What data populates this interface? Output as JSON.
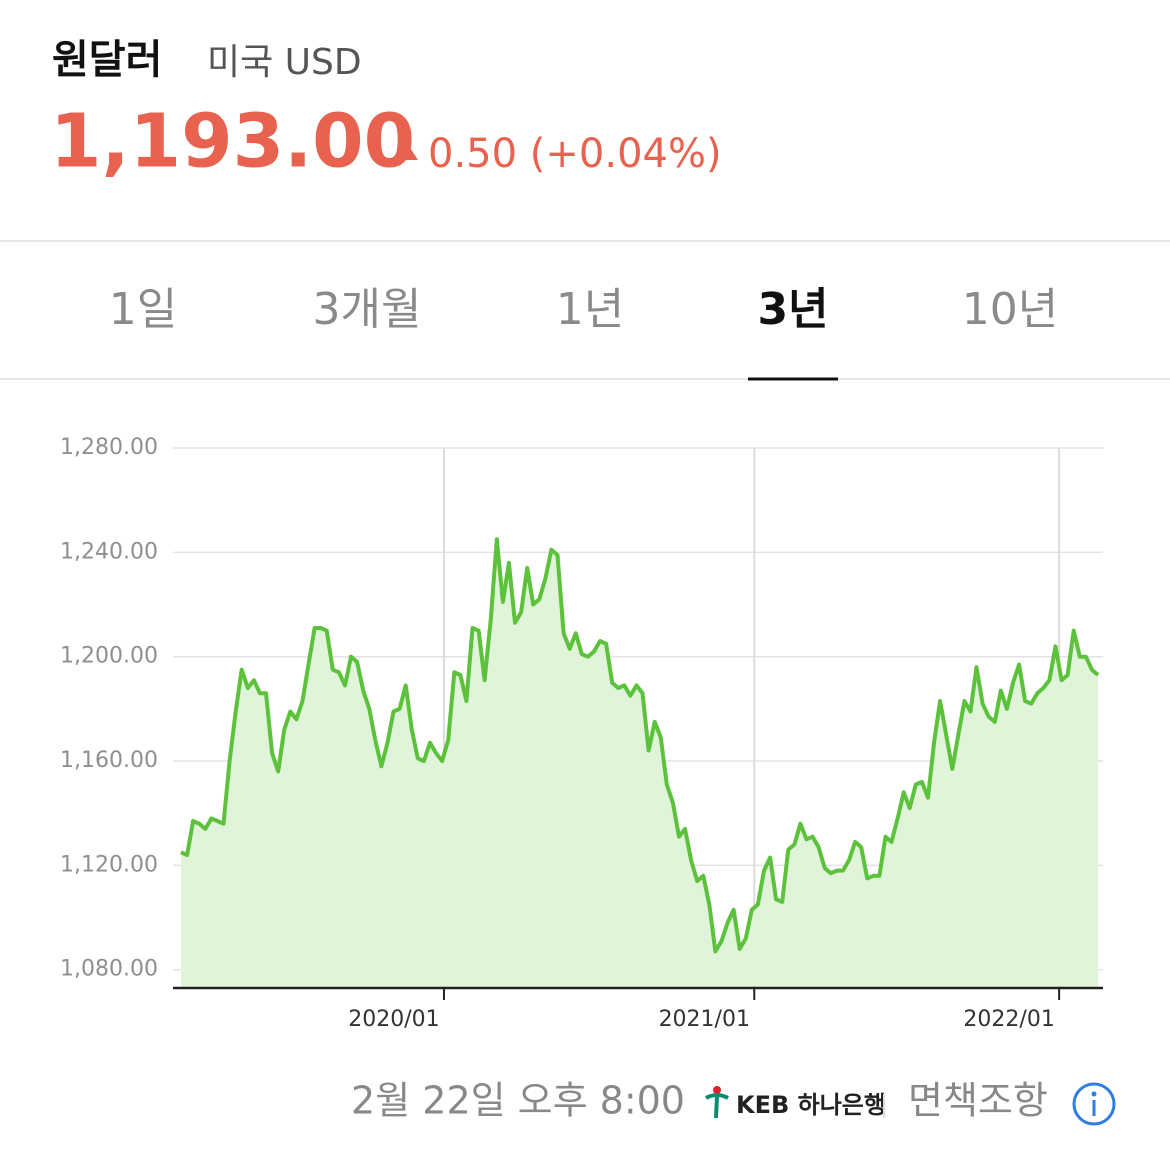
{
  "header": {
    "title": "원달러",
    "subtitle": "미국 USD",
    "price": "1,193.00",
    "change": "0.50 (+0.04%)"
  },
  "tabs": [
    "1일",
    "3개월",
    "1년",
    "3년",
    "10년"
  ],
  "chart_data": {
    "type": "line",
    "series": [
      {
        "color": "#5cc23c",
        "values": [
          1125,
          1124,
          1137,
          1136,
          1134,
          1138,
          1137,
          1136,
          1160,
          1179,
          1195,
          1188,
          1191,
          1186,
          1186,
          1163,
          1156,
          1172,
          1179,
          1176,
          1183,
          1197,
          1211,
          1211,
          1210,
          1195,
          1194,
          1189,
          1200,
          1198,
          1187,
          1180,
          1168,
          1158,
          1167,
          1179,
          1180,
          1189,
          1172,
          1161,
          1160,
          1167,
          1163,
          1160,
          1168,
          1194,
          1193,
          1183,
          1211,
          1210,
          1191,
          1214,
          1245,
          1221,
          1236,
          1213,
          1217,
          1234,
          1220,
          1222,
          1230,
          1241,
          1239,
          1209,
          1203,
          1209,
          1201,
          1200,
          1202,
          1206,
          1205,
          1190,
          1188,
          1189,
          1185,
          1189,
          1186,
          1164,
          1175,
          1169,
          1151,
          1144,
          1131,
          1134,
          1122,
          1114,
          1116,
          1105,
          1087,
          1091,
          1098,
          1103,
          1088,
          1092,
          1103,
          1105,
          1118,
          1123,
          1107,
          1106,
          1126,
          1128,
          1136,
          1130,
          1131,
          1127,
          1119,
          1117,
          1118,
          1118,
          1122,
          1129,
          1127,
          1115,
          1116,
          1116,
          1131,
          1129,
          1138,
          1148,
          1142,
          1151,
          1152,
          1146,
          1167,
          1183,
          1170,
          1157,
          1170,
          1183,
          1179,
          1196,
          1182,
          1177,
          1175,
          1187,
          1180,
          1190,
          1197,
          1183,
          1182,
          1186,
          1188,
          1191,
          1204,
          1191,
          1193,
          1210,
          1200,
          1200,
          1195,
          1193
        ]
      }
    ],
    "xticks": [
      {
        "value": 43.3,
        "label": "2020/01"
      },
      {
        "value": 94.4,
        "label": "2021/01"
      },
      {
        "value": 144.6,
        "label": "2022/01"
      }
    ],
    "ylim": [
      1073,
      1280
    ],
    "yticks": [
      {
        "value": 1080,
        "label": "1,080.00"
      },
      {
        "value": 1120,
        "label": "1,120.00"
      },
      {
        "value": 1160,
        "label": "1,160.00"
      },
      {
        "value": 1200,
        "label": "1,200.00"
      },
      {
        "value": 1240,
        "label": "1,240.00"
      },
      {
        "value": 1280,
        "label": "1,280.00"
      }
    ],
    "grid": true,
    "fill": "#dff4d9"
  },
  "footer": {
    "timestamp": "2월 22일 오후 8:00",
    "source": "KEB 하나은행",
    "disclaimer": "면책조항"
  }
}
